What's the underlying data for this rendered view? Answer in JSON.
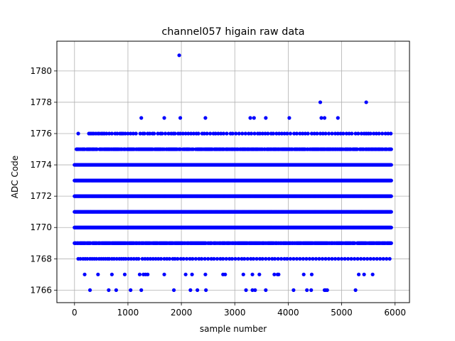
{
  "chart_data": {
    "type": "scatter",
    "title": "channel057 higain raw data",
    "xlabel": "sample number",
    "ylabel": "ADC Code",
    "xlim": [
      -330,
      6270
    ],
    "ylim": [
      1765.2,
      1781.9
    ],
    "xticks": [
      0,
      1000,
      2000,
      3000,
      4000,
      5000,
      6000
    ],
    "yticks": [
      1766,
      1768,
      1770,
      1772,
      1774,
      1776,
      1778,
      1780
    ],
    "grid": true,
    "marker_color": "#0000ff",
    "sample_range": [
      0,
      5930
    ],
    "series": [
      {
        "values": [
          {
            "y": 1781,
            "x": [
              1960
            ]
          },
          {
            "y": 1778,
            "x": [
              4600,
              5460
            ]
          },
          {
            "y": 1777,
            "x": [
              1250,
              1680,
              1980,
              2450,
              3290,
              3360,
              3580,
              4020,
              4620,
              4680,
              4930
            ]
          },
          {
            "y": 1776,
            "x": [
              70,
              270,
              300,
              330,
              360,
              400,
              440,
              460,
              500,
              530,
              560,
              600,
              650,
              700,
              760,
              800,
              850,
              880,
              910,
              950,
              1000,
              1050,
              1100,
              1150,
              1230,
              1280,
              1310,
              1370,
              1410,
              1460,
              1490,
              1560,
              1610,
              1640,
              1700,
              1760,
              1810,
              1850,
              1880,
              1940,
              1980,
              2030,
              2080,
              2130,
              2180,
              2230,
              2280,
              2320,
              2390,
              2430,
              2480,
              2540,
              2600,
              2640,
              2690,
              2740,
              2790,
              2850,
              2920,
              2960,
              3020,
              3080,
              3140,
              3200,
              3260,
              3310,
              3370,
              3430,
              3470,
              3520,
              3570,
              3620,
              3680,
              3720,
              3780,
              3830,
              3880,
              3930,
              3980,
              4040,
              4110,
              4160,
              4220,
              4270,
              4320,
              4370,
              4440,
              4490,
              4540,
              4600,
              4650,
              4700,
              4760,
              4820,
              4880,
              4930,
              4980,
              5030,
              5090,
              5140,
              5190,
              5260,
              5310,
              5370,
              5420,
              5460,
              5500,
              5540,
              5600,
              5650,
              5700,
              5760,
              5820,
              5870,
              5920
            ]
          },
          {
            "y": 1768,
            "x": [
              70,
              110,
              160,
              200,
              240,
              290,
              330,
              370,
              410,
              460,
              500,
              540,
              580,
              620,
              650,
              700,
              740,
              790,
              840,
              880,
              920,
              960,
              1010,
              1060,
              1110,
              1160,
              1200,
              1270,
              1320,
              1370,
              1420,
              1470,
              1520,
              1570,
              1620,
              1680,
              1730,
              1780,
              1840,
              1880,
              1930,
              1990,
              2040,
              2100,
              2160,
              2210,
              2270,
              2330,
              2380,
              2440,
              2500,
              2560,
              2610,
              2670,
              2730,
              2780,
              2840,
              2900,
              2950,
              3010,
              3070,
              3130,
              3180,
              3240,
              3300,
              3350,
              3410,
              3470,
              3520,
              3580,
              3640,
              3700,
              3750,
              3810,
              3870,
              3930,
              3980,
              4040,
              4100,
              4160,
              4220,
              4280,
              4340,
              4400,
              4460,
              4520,
              4580,
              4640,
              4700,
              4760,
              4820,
              4880,
              4940,
              5000,
              5060,
              5120,
              5180,
              5240,
              5300,
              5360,
              5420,
              5480,
              5540,
              5600,
              5660,
              5720,
              5780,
              5840,
              5900
            ]
          },
          {
            "y": 1767,
            "x": [
              190,
              440,
              700,
              940,
              1220,
              1290,
              1330,
              1370,
              1680,
              2080,
              2200,
              2450,
              2780,
              2820,
              3160,
              3330,
              3460,
              3740,
              3800,
              3820,
              4290,
              4440,
              5320,
              5420,
              5580
            ]
          },
          {
            "y": 1766,
            "x": [
              290,
              640,
              780,
              1050,
              1250,
              1860,
              2170,
              2300,
              2460,
              3210,
              3330,
              3380,
              3580,
              4100,
              4350,
              4430,
              4680,
              4700,
              4730,
              5260
            ]
          }
        ],
        "dense_levels": {
          "1775": 0.75,
          "1774": 1.0,
          "1773": 1.0,
          "1772": 1.0,
          "1771": 1.0,
          "1770": 1.0,
          "1769": 0.85
        }
      }
    ]
  }
}
